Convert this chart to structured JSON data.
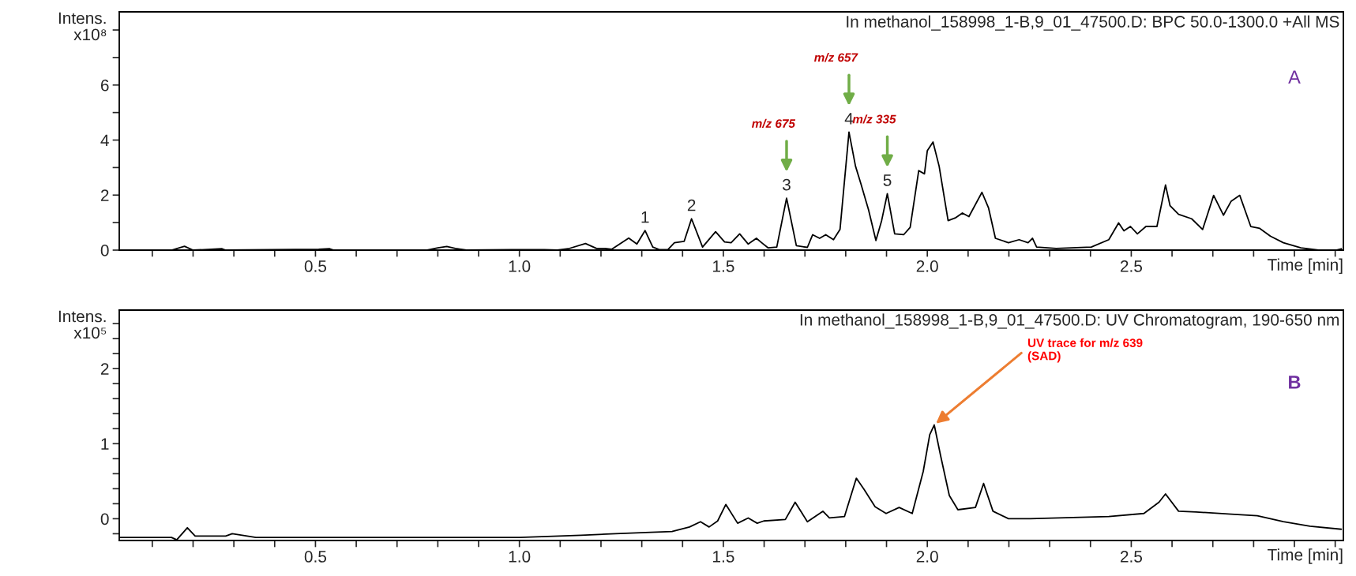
{
  "chart_data": [
    {
      "type": "line",
      "title": "In methanol_158998_1-B,9_01_47500.D: BPC 50.0-1300.0 +All MS",
      "xlabel": "Time [min]",
      "ylabel": "Intens.\nx10⁸",
      "series": [
        {
          "color": "#000000",
          "x": [
            0.019,
            0.147,
            0.179,
            0.2,
            0.271,
            0.28,
            0.508,
            0.535,
            0.545,
            0.774,
            0.8,
            0.822,
            0.843,
            0.87,
            0.981,
            1.018,
            1.061,
            1.093,
            1.12,
            1.162,
            1.189,
            1.21,
            1.226,
            1.268,
            1.288,
            1.308,
            1.327,
            1.343,
            1.364,
            1.38,
            1.404,
            1.422,
            1.449,
            1.481,
            1.503,
            1.519,
            1.54,
            1.561,
            1.581,
            1.594,
            1.61,
            1.631,
            1.655,
            1.679,
            1.706,
            1.719,
            1.736,
            1.751,
            1.77,
            1.786,
            1.808,
            1.824,
            1.837,
            1.856,
            1.874,
            1.888,
            1.902,
            1.92,
            1.942,
            1.958,
            1.979,
            1.993,
            2.0,
            2.014,
            2.029,
            2.051,
            2.07,
            2.086,
            2.102,
            2.134,
            2.15,
            2.167,
            2.199,
            2.225,
            2.247,
            2.258,
            2.268,
            2.316,
            2.402,
            2.445,
            2.469,
            2.482,
            2.498,
            2.515,
            2.536,
            2.563,
            2.584,
            2.595,
            2.616,
            2.648,
            2.675,
            2.702,
            2.726,
            2.745,
            2.766,
            2.793,
            2.815,
            2.841,
            2.873,
            2.916,
            2.959,
            3.002,
            3.015
          ],
          "values": [
            0,
            0,
            0.14,
            0,
            0.05,
            0,
            0.03,
            0.05,
            0,
            0,
            0.08,
            0.13,
            0.06,
            0,
            0.02,
            0.02,
            0.02,
            0,
            0.05,
            0.24,
            0.06,
            0.06,
            0.03,
            0.44,
            0.22,
            0.71,
            0.11,
            0.02,
            0.02,
            0.27,
            0.32,
            1.14,
            0.11,
            0.67,
            0.3,
            0.27,
            0.59,
            0.22,
            0.43,
            0.27,
            0.08,
            0.11,
            1.89,
            0.16,
            0.1,
            0.56,
            0.43,
            0.56,
            0.38,
            0.75,
            4.29,
            3.05,
            2.42,
            1.46,
            0.35,
            1.07,
            2.05,
            0.59,
            0.56,
            0.83,
            2.89,
            2.77,
            3.61,
            3.93,
            3.05,
            1.07,
            1.18,
            1.35,
            1.22,
            2.1,
            1.54,
            0.43,
            0.27,
            0.38,
            0.27,
            0.43,
            0.11,
            0.06,
            0.11,
            0.38,
            0.99,
            0.7,
            0.86,
            0.59,
            0.86,
            0.86,
            2.37,
            1.62,
            1.3,
            1.14,
            0.75,
            1.99,
            1.27,
            1.78,
            1.99,
            0.86,
            0.79,
            0.51,
            0.27,
            0.08,
            0,
            0,
            0.05
          ]
        }
      ],
      "xlim": [
        0.019,
        3.02
      ],
      "xticks": [
        {
          "value": 0.1,
          "label": null
        },
        {
          "value": 0.2,
          "label": null
        },
        {
          "value": 0.3,
          "label": null
        },
        {
          "value": 0.4,
          "label": null
        },
        {
          "value": 0.5,
          "label": "0.5"
        },
        {
          "value": 0.6,
          "label": null
        },
        {
          "value": 0.7,
          "label": null
        },
        {
          "value": 0.8,
          "label": null
        },
        {
          "value": 0.9,
          "label": null
        },
        {
          "value": 1.0,
          "label": "1.0"
        },
        {
          "value": 1.1,
          "label": null
        },
        {
          "value": 1.2,
          "label": null
        },
        {
          "value": 1.3,
          "label": null
        },
        {
          "value": 1.4,
          "label": null
        },
        {
          "value": 1.5,
          "label": "1.5"
        },
        {
          "value": 1.6,
          "label": null
        },
        {
          "value": 1.7,
          "label": null
        },
        {
          "value": 1.8,
          "label": null
        },
        {
          "value": 1.9,
          "label": null
        },
        {
          "value": 2.0,
          "label": "2.0"
        },
        {
          "value": 2.1,
          "label": null
        },
        {
          "value": 2.2,
          "label": null
        },
        {
          "value": 2.3,
          "label": null
        },
        {
          "value": 2.4,
          "label": null
        },
        {
          "value": 2.5,
          "label": "2.5"
        },
        {
          "value": 2.6,
          "label": null
        },
        {
          "value": 2.7,
          "label": null
        },
        {
          "value": 2.8,
          "label": null
        },
        {
          "value": 2.9,
          "label": null
        },
        {
          "value": 3.0,
          "label": null
        }
      ],
      "ylim": [
        0,
        8.66
      ],
      "yticks": [
        0,
        {
          "value": 1,
          "label": null
        },
        2,
        {
          "value": 3,
          "label": null
        },
        4,
        {
          "value": 5,
          "label": null
        },
        6,
        {
          "value": 7,
          "label": null
        },
        {
          "value": 8,
          "label": null
        }
      ],
      "grid": false,
      "annotations": [
        {
          "text": "1",
          "x": 1.308,
          "y": 0.71
        },
        {
          "text": "2",
          "x": 1.422,
          "y": 1.14
        },
        {
          "text": "3",
          "x": 1.655,
          "y": 1.89
        },
        {
          "text": "4",
          "x": 1.808,
          "y": 4.29
        },
        {
          "text": "5",
          "x": 1.902,
          "y": 2.05
        },
        "m/z 675",
        "m/z 657",
        "m/z 335",
        "A"
      ]
    },
    {
      "type": "line",
      "title": "In methanol_158998_1-B,9_01_47500.D: UV Chromatogram, 190-650 nm",
      "xlabel": "Time [min]",
      "ylabel": "Intens.\nx10⁵",
      "series": [
        {
          "color": "#000000",
          "x": [
            0.019,
            0.147,
            0.16,
            0.186,
            0.205,
            0.28,
            0.296,
            0.354,
            0.577,
            1.0,
            1.151,
            1.236,
            1.322,
            1.374,
            1.417,
            1.444,
            1.465,
            1.486,
            1.506,
            1.535,
            1.561,
            1.583,
            1.599,
            1.652,
            1.676,
            1.706,
            1.744,
            1.76,
            1.797,
            1.826,
            1.845,
            1.872,
            1.899,
            1.931,
            1.963,
            1.99,
            2.006,
            2.017,
            2.033,
            2.054,
            2.075,
            2.118,
            2.138,
            2.161,
            2.199,
            2.252,
            2.445,
            2.531,
            2.568,
            2.584,
            2.616,
            2.659,
            2.745,
            2.809,
            2.873,
            2.938,
            3.015
          ],
          "values": [
            -0.25,
            -0.25,
            -0.28,
            -0.12,
            -0.23,
            -0.23,
            -0.2,
            -0.25,
            -0.25,
            -0.25,
            -0.22,
            -0.2,
            -0.18,
            -0.17,
            -0.11,
            -0.04,
            -0.11,
            -0.03,
            0.19,
            -0.06,
            0.01,
            -0.06,
            -0.03,
            -0.01,
            0.22,
            -0.04,
            0.1,
            0.01,
            0.03,
            0.54,
            0.39,
            0.16,
            0.07,
            0.15,
            0.07,
            0.63,
            1.12,
            1.25,
            0.83,
            0.31,
            0.12,
            0.15,
            0.47,
            0.1,
            0.0,
            0.0,
            0.03,
            0.07,
            0.22,
            0.33,
            0.1,
            0.09,
            0.06,
            0.04,
            -0.04,
            -0.1,
            -0.14
          ]
        }
      ],
      "xlim": [
        0.019,
        3.02
      ],
      "xticks": [
        {
          "value": 0.1,
          "label": null
        },
        {
          "value": 0.2,
          "label": null
        },
        {
          "value": 0.3,
          "label": null
        },
        {
          "value": 0.4,
          "label": null
        },
        {
          "value": 0.5,
          "label": "0.5"
        },
        {
          "value": 0.6,
          "label": null
        },
        {
          "value": 0.7,
          "label": null
        },
        {
          "value": 0.8,
          "label": null
        },
        {
          "value": 0.9,
          "label": null
        },
        {
          "value": 1.0,
          "label": "1.0"
        },
        {
          "value": 1.1,
          "label": null
        },
        {
          "value": 1.2,
          "label": null
        },
        {
          "value": 1.3,
          "label": null
        },
        {
          "value": 1.4,
          "label": null
        },
        {
          "value": 1.5,
          "label": "1.5"
        },
        {
          "value": 1.6,
          "label": null
        },
        {
          "value": 1.7,
          "label": null
        },
        {
          "value": 1.8,
          "label": null
        },
        {
          "value": 1.9,
          "label": null
        },
        {
          "value": 2.0,
          "label": "2.0"
        },
        {
          "value": 2.1,
          "label": null
        },
        {
          "value": 2.2,
          "label": null
        },
        {
          "value": 2.3,
          "label": null
        },
        {
          "value": 2.4,
          "label": null
        },
        {
          "value": 2.5,
          "label": "2.5"
        },
        {
          "value": 2.6,
          "label": null
        },
        {
          "value": 2.7,
          "label": null
        },
        {
          "value": 2.8,
          "label": null
        },
        {
          "value": 2.9,
          "label": null
        },
        {
          "value": 3.0,
          "label": null
        }
      ],
      "ylim": [
        -0.29,
        2.78
      ],
      "yticks": [
        {
          "value": -0.2,
          "label": null
        },
        0,
        {
          "value": 0.2,
          "label": null
        },
        {
          "value": 0.4,
          "label": null
        },
        {
          "value": 0.6,
          "label": null
        },
        {
          "value": 0.8,
          "label": null
        },
        1,
        {
          "value": 1.2,
          "label": null
        },
        {
          "value": 1.4,
          "label": null
        },
        {
          "value": 1.6,
          "label": null
        },
        {
          "value": 1.8,
          "label": null
        },
        2,
        {
          "value": 2.2,
          "label": null
        },
        {
          "value": 2.4,
          "label": null
        },
        {
          "value": 2.6,
          "label": null
        }
      ],
      "grid": false,
      "annotations": [
        {
          "text": "UV trace for m/z 639\n(SAD)",
          "x": 2.017,
          "y": 1.25
        },
        "B"
      ]
    }
  ]
}
